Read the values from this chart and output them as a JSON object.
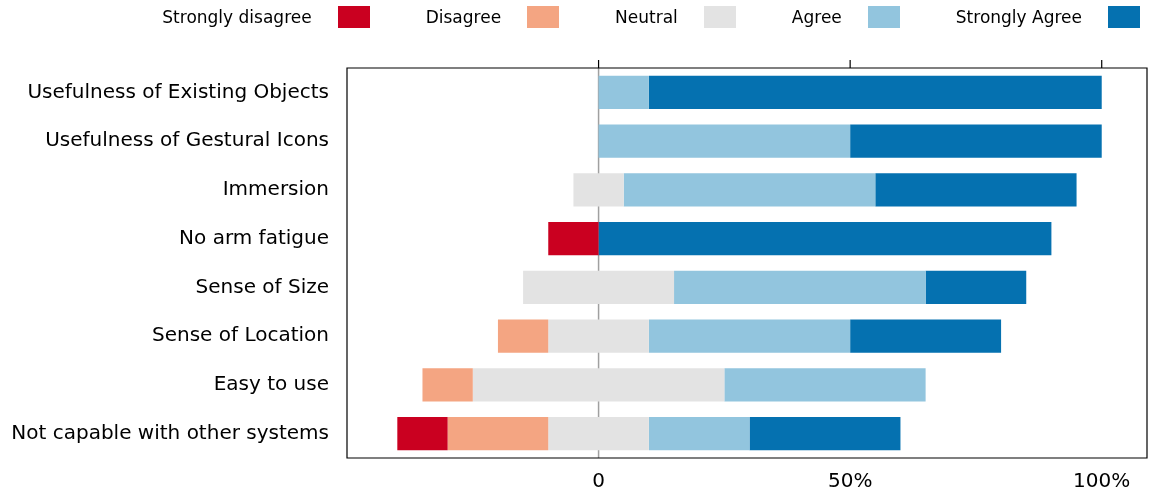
{
  "chart_data": {
    "type": "bar",
    "orientation": "horizontal",
    "legend": "top",
    "categories": [
      "Usefulness of Existing Objects",
      "Usefulness of Gestural Icons",
      "Immersion",
      "No arm fatigue",
      "Sense of Size",
      "Sense of Location",
      "Easy to use",
      "Not capable with other systems"
    ],
    "series": [
      {
        "name": "Strongly disagree",
        "color": "#ca0020",
        "values": [
          null,
          null,
          null,
          10,
          null,
          null,
          null,
          10
        ],
        "base": [
          null,
          null,
          null,
          -10,
          null,
          null,
          null,
          -40
        ]
      },
      {
        "name": "Disagree",
        "color": "#f4a582",
        "values": [
          null,
          null,
          null,
          null,
          null,
          10,
          10,
          20
        ],
        "base": [
          null,
          null,
          null,
          null,
          null,
          -20,
          -35,
          -30
        ]
      },
      {
        "name": "Neutral",
        "color": "#e3e3e3",
        "values": [
          null,
          null,
          10,
          null,
          30,
          20,
          50,
          20
        ],
        "base": [
          null,
          null,
          -5,
          null,
          -15,
          -10,
          -25,
          -10
        ]
      },
      {
        "name": "Agree",
        "color": "#92c5de",
        "values": [
          10,
          50,
          50,
          null,
          50,
          40,
          40,
          20
        ],
        "base": [
          0,
          0,
          5,
          null,
          15,
          10,
          25,
          10
        ]
      },
      {
        "name": "Strongly Agree",
        "color": "#0571b0",
        "values": [
          90,
          50,
          40,
          90,
          20,
          30,
          null,
          30
        ],
        "base": [
          10,
          50,
          55,
          0,
          65,
          50,
          null,
          30
        ]
      }
    ],
    "xlim": [
      -50,
      109
    ],
    "xticks": [
      0,
      {
        "value": 50,
        "label": "50%"
      },
      {
        "value": 100,
        "label": "100%"
      }
    ],
    "ref_lines": [
      {
        "axis": "x",
        "value": 0,
        "color": "#a0a0a0"
      }
    ]
  }
}
